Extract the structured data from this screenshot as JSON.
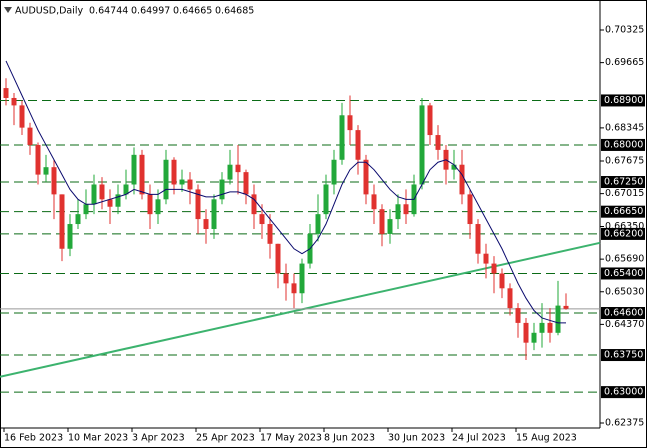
{
  "chart_data": {
    "type": "candlestick",
    "title": "AUDUSD,Daily",
    "quote": [
      "0.64744",
      "0.64997",
      "0.64665",
      "0.64685"
    ],
    "categories": [
      "16 Feb 2023",
      null,
      null,
      null,
      null,
      null,
      null,
      null,
      "10 Mar 2023",
      null,
      null,
      null,
      null,
      null,
      null,
      null,
      "3 Apr 2023",
      null,
      null,
      null,
      null,
      null,
      null,
      null,
      "25 Apr 2023",
      null,
      null,
      null,
      null,
      null,
      null,
      null,
      "17 May 2023",
      null,
      null,
      null,
      null,
      null,
      null,
      null,
      "8 Jun 2023",
      null,
      null,
      null,
      null,
      null,
      null,
      null,
      "30 Jun 2023",
      null,
      null,
      null,
      null,
      null,
      null,
      null,
      "24 Jul 2023",
      null,
      null,
      null,
      null,
      null,
      null,
      null,
      "15 Aug 2023",
      null,
      null,
      null,
      null,
      null,
      null
    ],
    "open": [
      0.6915,
      0.6895,
      0.688,
      0.6835,
      0.68,
      0.674,
      0.6755,
      0.67,
      0.659,
      0.664,
      0.666,
      0.668,
      0.672,
      0.669,
      0.6675,
      0.67,
      0.672,
      0.678,
      0.67,
      0.666,
      0.669,
      0.677,
      0.672,
      0.673,
      0.671,
      0.665,
      0.663,
      0.669,
      0.673,
      0.676,
      0.6745,
      0.67,
      0.666,
      0.664,
      0.66,
      0.654,
      0.652,
      0.65,
      0.656,
      0.662,
      0.666,
      0.672,
      0.677,
      0.686,
      0.683,
      0.677,
      0.67,
      0.667,
      0.662,
      0.665,
      0.668,
      0.666,
      0.672,
      0.688,
      0.682,
      0.679,
      0.675,
      0.676,
      0.67,
      0.664,
      0.658,
      0.656,
      0.654,
      0.651,
      0.647,
      0.644,
      0.64,
      0.642,
      0.644,
      0.642,
      0.64744
    ],
    "high": [
      0.6935,
      0.6905,
      0.689,
      0.6845,
      0.6805,
      0.678,
      0.677,
      0.67,
      0.666,
      0.669,
      0.671,
      0.674,
      0.6735,
      0.671,
      0.672,
      0.675,
      0.6795,
      0.679,
      0.672,
      0.671,
      0.679,
      0.6775,
      0.675,
      0.6745,
      0.672,
      0.667,
      0.67,
      0.6745,
      0.679,
      0.68,
      0.675,
      0.672,
      0.668,
      0.666,
      0.66,
      0.656,
      0.654,
      0.657,
      0.664,
      0.67,
      0.674,
      0.679,
      0.6885,
      0.69,
      0.684,
      0.678,
      0.672,
      0.668,
      0.667,
      0.67,
      0.671,
      0.674,
      0.6895,
      0.6885,
      0.684,
      0.68,
      0.679,
      0.679,
      0.671,
      0.665,
      0.66,
      0.6575,
      0.655,
      0.652,
      0.648,
      0.645,
      0.644,
      0.648,
      0.647,
      0.6525,
      0.64997
    ],
    "low": [
      0.688,
      0.684,
      0.682,
      0.678,
      0.672,
      0.6725,
      0.665,
      0.6565,
      0.6575,
      0.663,
      0.665,
      0.666,
      0.667,
      0.664,
      0.666,
      0.669,
      0.67,
      0.669,
      0.663,
      0.664,
      0.668,
      0.67,
      0.6705,
      0.668,
      0.662,
      0.66,
      0.661,
      0.668,
      0.672,
      0.67,
      0.668,
      0.663,
      0.661,
      0.657,
      0.651,
      0.6485,
      0.647,
      0.648,
      0.655,
      0.6605,
      0.665,
      0.67,
      0.676,
      0.68,
      0.674,
      0.668,
      0.664,
      0.6595,
      0.66,
      0.663,
      0.664,
      0.6655,
      0.671,
      0.68,
      0.677,
      0.672,
      0.673,
      0.668,
      0.661,
      0.656,
      0.653,
      0.65,
      0.649,
      0.6455,
      0.641,
      0.6365,
      0.6385,
      0.639,
      0.64,
      0.6415,
      0.64665
    ],
    "close": [
      0.6895,
      0.688,
      0.6835,
      0.68,
      0.674,
      0.6755,
      0.67,
      0.659,
      0.664,
      0.666,
      0.668,
      0.672,
      0.669,
      0.6675,
      0.67,
      0.672,
      0.678,
      0.67,
      0.666,
      0.669,
      0.677,
      0.672,
      0.673,
      0.671,
      0.665,
      0.663,
      0.669,
      0.673,
      0.676,
      0.6745,
      0.67,
      0.666,
      0.664,
      0.66,
      0.654,
      0.652,
      0.65,
      0.656,
      0.662,
      0.666,
      0.672,
      0.677,
      0.686,
      0.683,
      0.677,
      0.67,
      0.667,
      0.662,
      0.665,
      0.668,
      0.666,
      0.672,
      0.688,
      0.682,
      0.679,
      0.675,
      0.676,
      0.67,
      0.664,
      0.658,
      0.656,
      0.654,
      0.651,
      0.647,
      0.644,
      0.64,
      0.642,
      0.644,
      0.642,
      0.6475,
      0.64685
    ],
    "up_color": "#22a83a",
    "down_color": "#e0322f",
    "moving_average": {
      "color": "#0a0a6e",
      "values": [
        0.697,
        0.6935,
        0.69,
        0.6865,
        0.683,
        0.68,
        0.677,
        0.674,
        0.671,
        0.669,
        0.668,
        0.668,
        0.6685,
        0.669,
        0.6695,
        0.67,
        0.671,
        0.6705,
        0.67,
        0.67,
        0.671,
        0.671,
        0.671,
        0.6705,
        0.67,
        0.6695,
        0.6695,
        0.67,
        0.6705,
        0.6705,
        0.67,
        0.669,
        0.667,
        0.665,
        0.663,
        0.661,
        0.659,
        0.658,
        0.659,
        0.661,
        0.664,
        0.668,
        0.672,
        0.675,
        0.6765,
        0.6765,
        0.675,
        0.673,
        0.671,
        0.6695,
        0.669,
        0.669,
        0.672,
        0.675,
        0.6765,
        0.677,
        0.676,
        0.674,
        0.671,
        0.668,
        0.665,
        0.662,
        0.659,
        0.6555,
        0.652,
        0.649,
        0.6465,
        0.645,
        0.6445,
        0.644,
        0.644
      ]
    },
    "trendline": {
      "color": "#3cb36e",
      "values": [
        0.6331,
        0.6602
      ]
    },
    "levels": {
      "color": "#0b6b16",
      "values": [
        {
          "value": 0.689,
          "label": "0.68900"
        },
        {
          "value": 0.68,
          "label": "0.68000"
        },
        {
          "value": 0.6725,
          "label": "0.67250"
        },
        {
          "value": 0.6665,
          "label": "0.66650"
        },
        {
          "value": 0.662,
          "label": "0.66200"
        },
        {
          "value": 0.654,
          "label": "0.65400"
        },
        {
          "value": 0.646,
          "label": "0.64600"
        },
        {
          "value": 0.6375,
          "label": "0.63750"
        },
        {
          "value": 0.63,
          "label": "0.63000"
        }
      ]
    },
    "ylim": [
      0.62274,
      0.70932
    ],
    "yticks": [
      0.70325,
      0.69665,
      0.68345,
      0.67675,
      0.67015,
      {
        "value": 0.6635,
        "label": "0.66350"
      },
      {
        "value": 0.6569,
        "label": "0.65690"
      },
      {
        "value": 0.6503,
        "label": "0.65030"
      },
      {
        "value": 0.6437,
        "label": "0.64370"
      },
      0.62375
    ]
  }
}
